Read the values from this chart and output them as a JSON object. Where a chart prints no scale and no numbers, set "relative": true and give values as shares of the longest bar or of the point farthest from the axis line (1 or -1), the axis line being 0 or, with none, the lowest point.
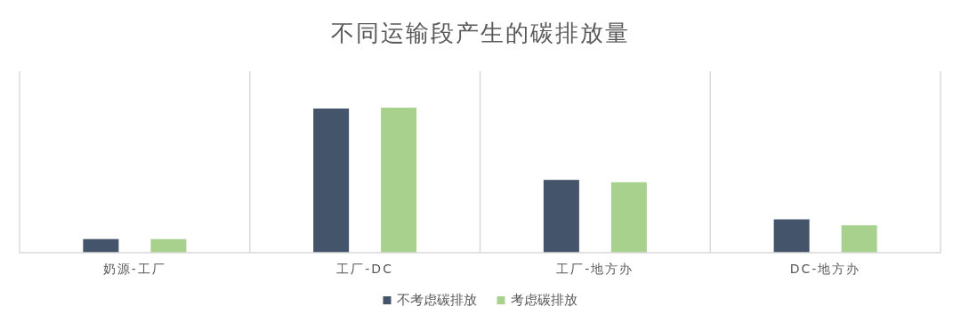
{
  "chart_data": {
    "type": "bar",
    "title": "不同运输段产生的碳排放量",
    "relative": true,
    "categories": [
      "奶源-工厂",
      "工厂-DC",
      "工厂-地方办",
      "DC-地方办"
    ],
    "series": [
      {
        "name": "不考虑碳排放",
        "color": "#44546a",
        "values": [
          0.094,
          0.994,
          0.502,
          0.23
        ]
      },
      {
        "name": "考虑碳排放",
        "color": "#a9d18e",
        "values": [
          0.094,
          1,
          0.486,
          0.189
        ]
      }
    ],
    "grid": "x",
    "legend": "bottom"
  }
}
